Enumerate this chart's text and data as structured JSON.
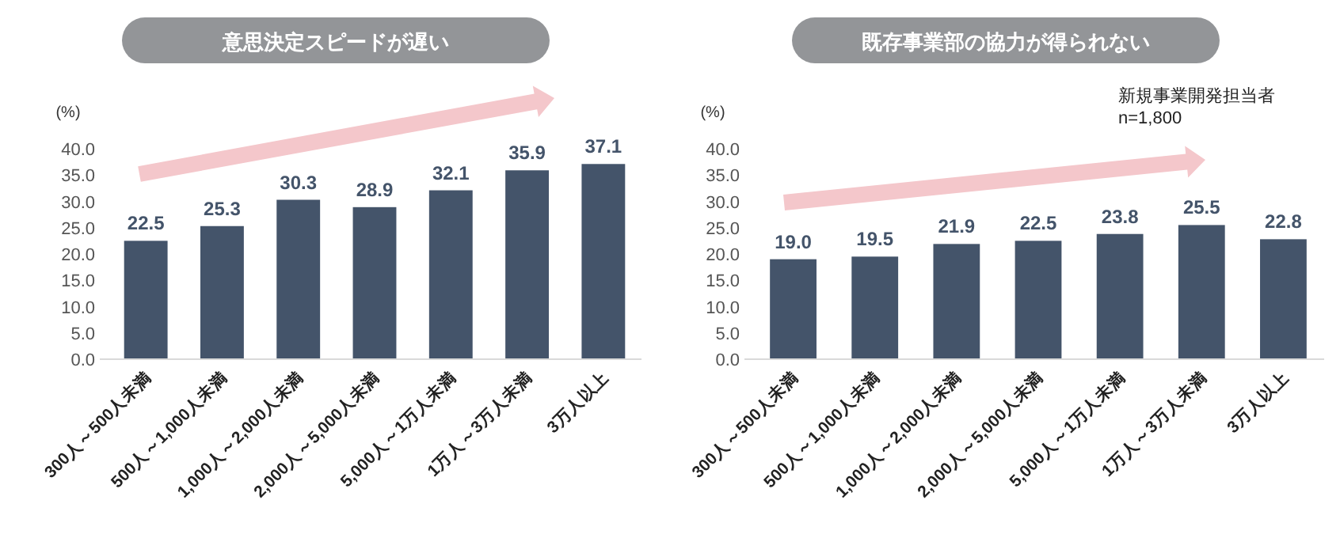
{
  "chart_data": [
    {
      "type": "bar",
      "title": "意思決定スピードが遅い",
      "ylabel": "(%)",
      "categories": [
        "300人～500人未満",
        "500人～1,000人未満",
        "1,000人～2,000人未満",
        "2,000人～5,000人未満",
        "5,000人～1万人未満",
        "1万人～3万人未満",
        "3万人以上"
      ],
      "values": [
        22.5,
        25.3,
        30.3,
        28.9,
        32.1,
        35.9,
        37.1
      ],
      "value_labels": [
        "22.5",
        "25.3",
        "30.3",
        "28.9",
        "32.1",
        "35.9",
        "37.1"
      ],
      "color": "#44546a",
      "grid": false,
      "ylim": [
        0,
        40
      ],
      "yticks": [
        {
          "value": 0,
          "label": "0.0"
        },
        {
          "value": 5,
          "label": "5.0"
        },
        {
          "value": 10,
          "label": "10.0"
        },
        {
          "value": 15,
          "label": "15.0"
        },
        {
          "value": 20,
          "label": "20.0"
        },
        {
          "value": 25,
          "label": "25.0"
        },
        {
          "value": 30,
          "label": "30.0"
        },
        {
          "value": 35,
          "label": "35.0"
        },
        {
          "value": 40,
          "label": "40.0"
        }
      ]
    },
    {
      "type": "bar",
      "title": "既存事業部の協力が得られない",
      "ylabel": "(%)",
      "categories": [
        "300人～500人未満",
        "500人～1,000人未満",
        "1,000人～2,000人未満",
        "2,000人～5,000人未満",
        "5,000人～1万人未満",
        "1万人～3万人未満",
        "3万人以上"
      ],
      "values": [
        19.0,
        19.5,
        21.9,
        22.5,
        23.8,
        25.5,
        22.8
      ],
      "value_labels": [
        "19.0",
        "19.5",
        "21.9",
        "22.5",
        "23.8",
        "25.5",
        "22.8"
      ],
      "color": "#44546a",
      "grid": false,
      "annotations": [
        "新規事業開発担当者",
        "n=1,800"
      ],
      "ylim": [
        0,
        40
      ],
      "yticks": [
        {
          "value": 0,
          "label": "0.0"
        },
        {
          "value": 5,
          "label": "5.0"
        },
        {
          "value": 10,
          "label": "10.0"
        },
        {
          "value": 15,
          "label": "15.0"
        },
        {
          "value": 20,
          "label": "20.0"
        },
        {
          "value": 25,
          "label": "25.0"
        },
        {
          "value": 30,
          "label": "30.0"
        },
        {
          "value": 35,
          "label": "35.0"
        },
        {
          "value": 40,
          "label": "40.0"
        }
      ]
    }
  ]
}
